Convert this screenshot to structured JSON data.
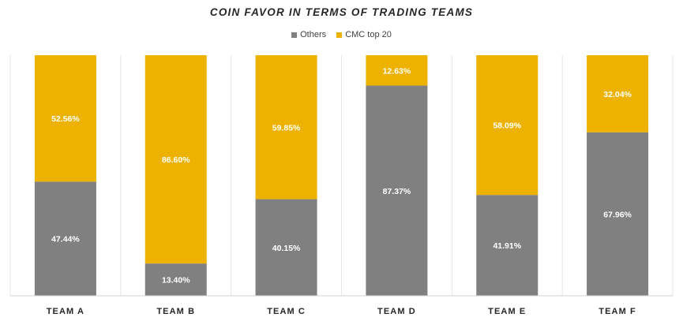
{
  "chart_data": {
    "type": "bar",
    "stacked": true,
    "percent": true,
    "title": "COIN FAVOR IN TERMS OF TRADING TEAMS",
    "categories": [
      "TEAM A",
      "TEAM B",
      "TEAM C",
      "TEAM D",
      "TEAM E",
      "TEAM F"
    ],
    "series": [
      {
        "name": "Others",
        "color": "#808080",
        "values": [
          47.44,
          13.4,
          40.15,
          87.37,
          41.91,
          67.96
        ],
        "labels": [
          "47.44%",
          "13.40%",
          "40.15%",
          "87.37%",
          "41.91%",
          "67.96%"
        ]
      },
      {
        "name": "CMC top 20",
        "color": "#EDB200",
        "values": [
          52.56,
          86.6,
          59.85,
          12.63,
          58.09,
          32.04
        ],
        "labels": [
          "52.56%",
          "86.60%",
          "59.85%",
          "12.63%",
          "58.09%",
          "32.04%"
        ]
      }
    ],
    "ylim": [
      0,
      100
    ],
    "legend": "top",
    "grid": "vertical separators"
  }
}
